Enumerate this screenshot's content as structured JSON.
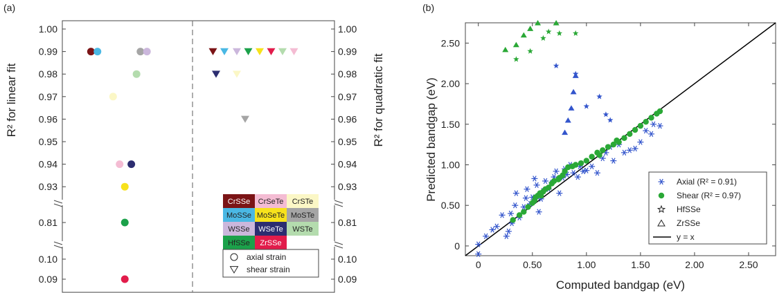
{
  "chart_data": [
    {
      "type": "scatter",
      "panel_label": "(a)",
      "ylabel_left": "R² for linear fit",
      "ylabel_right": "R² for quadratic fit",
      "yticks_upper": [
        "1.00",
        "0.99",
        "0.98",
        "0.97",
        "0.96",
        "0.95",
        "0.94",
        "0.93"
      ],
      "yticks_mid": [
        "0.81"
      ],
      "yticks_low": [
        "0.10",
        "0.09"
      ],
      "axial_points": [
        {
          "material": "CrSSe",
          "r2": 0.99,
          "x": 0.22
        },
        {
          "material": "MoSSe",
          "r2": 0.99,
          "x": 0.27
        },
        {
          "material": "MoSTe",
          "r2": 0.99,
          "x": 0.6
        },
        {
          "material": "WSSe",
          "r2": 0.99,
          "x": 0.65
        },
        {
          "material": "WSTe",
          "r2": 0.98,
          "x": 0.57
        },
        {
          "material": "CrSTe",
          "r2": 0.97,
          "x": 0.39
        },
        {
          "material": "CrSeTe",
          "r2": 0.94,
          "x": 0.44
        },
        {
          "material": "WSeTe",
          "r2": 0.94,
          "x": 0.53
        },
        {
          "material": "MoSeTe",
          "r2": 0.93,
          "x": 0.48
        },
        {
          "material": "HfSSe",
          "r2": 0.81,
          "x": 0.48
        },
        {
          "material": "ZrSSe",
          "r2": 0.09,
          "x": 0.48
        }
      ],
      "shear_points": [
        {
          "material": "CrSSe",
          "r2": 0.99,
          "x": 0.05
        },
        {
          "material": "MoSSe",
          "r2": 0.99,
          "x": 0.16
        },
        {
          "material": "WSSe",
          "r2": 0.99,
          "x": 0.28
        },
        {
          "material": "HfSSe",
          "r2": 0.99,
          "x": 0.39
        },
        {
          "material": "MoSeTe",
          "r2": 0.99,
          "x": 0.5
        },
        {
          "material": "ZrSSe",
          "r2": 0.99,
          "x": 0.61
        },
        {
          "material": "WSTe",
          "r2": 0.99,
          "x": 0.72
        },
        {
          "material": "CrSeTe",
          "r2": 0.99,
          "x": 0.83
        },
        {
          "material": "WSeTe",
          "r2": 0.98,
          "x": 0.08
        },
        {
          "material": "CrSTe",
          "r2": 0.98,
          "x": 0.28
        },
        {
          "material": "MoSTe",
          "r2": 0.96,
          "x": 0.36
        }
      ],
      "materials": [
        {
          "name": "CrSSe",
          "color": "#7b1416",
          "text_color": "#ffffff"
        },
        {
          "name": "CrSeTe",
          "color": "#f4bcd3",
          "text_color": "#222222"
        },
        {
          "name": "CrSTe",
          "color": "#fbf7c6",
          "text_color": "#222222"
        },
        {
          "name": "MoSSe",
          "color": "#4ab8e4",
          "text_color": "#222222"
        },
        {
          "name": "MoSeTe",
          "color": "#f7e21c",
          "text_color": "#222222"
        },
        {
          "name": "MoSTe",
          "color": "#a5a5a5",
          "text_color": "#222222"
        },
        {
          "name": "WSSe",
          "color": "#cbb7dc",
          "text_color": "#222222"
        },
        {
          "name": "WSeTe",
          "color": "#2c2d70",
          "text_color": "#ffffff"
        },
        {
          "name": "WSTe",
          "color": "#b4dcae",
          "text_color": "#222222"
        },
        {
          "name": "HfSSe",
          "color": "#1ba14a",
          "text_color": "#222222"
        },
        {
          "name": "ZrSSe",
          "color": "#e21c4b",
          "text_color": "#ffffff"
        }
      ],
      "marker_legend": [
        {
          "shape": "circle",
          "label": "axial strain"
        },
        {
          "shape": "triangle-down",
          "label": "shear strain"
        }
      ]
    },
    {
      "type": "scatter",
      "panel_label": "(b)",
      "xlabel": "Computed bandgap (eV)",
      "ylabel": "Predicted bandgap (eV)",
      "xlim": [
        -0.12,
        2.75
      ],
      "ylim": [
        -0.12,
        2.75
      ],
      "xticks": [
        "0",
        "0.50",
        "1.00",
        "1.50",
        "2.00",
        "2.50"
      ],
      "yticks": [
        "0",
        "0.50",
        "1.00",
        "1.50",
        "2.00",
        "2.50"
      ],
      "colors": {
        "axial": "#3355cc",
        "shear": "#2aa836",
        "line": "#000000"
      },
      "legend": [
        {
          "key": "axial",
          "label": "Axial (R² = 0.91)"
        },
        {
          "key": "shear",
          "label": "Shear (R² = 0.97)"
        },
        {
          "key": "hfsse",
          "label": "HfSSe"
        },
        {
          "key": "zrsse",
          "label": "ZrSSe"
        },
        {
          "key": "line",
          "label": "y = x"
        }
      ],
      "axial_points": [
        [
          0.0,
          -0.1
        ],
        [
          0.0,
          0.02
        ],
        [
          0.07,
          0.12
        ],
        [
          0.13,
          0.2
        ],
        [
          0.17,
          0.24
        ],
        [
          0.22,
          0.38
        ],
        [
          0.26,
          0.12
        ],
        [
          0.28,
          0.18
        ],
        [
          0.3,
          0.4
        ],
        [
          0.31,
          0.28
        ],
        [
          0.34,
          0.5
        ],
        [
          0.35,
          0.65
        ],
        [
          0.38,
          0.35
        ],
        [
          0.42,
          0.48
        ],
        [
          0.44,
          0.59
        ],
        [
          0.45,
          0.7
        ],
        [
          0.48,
          0.52
        ],
        [
          0.5,
          0.6
        ],
        [
          0.52,
          0.83
        ],
        [
          0.54,
          0.75
        ],
        [
          0.56,
          0.42
        ],
        [
          0.58,
          0.58
        ],
        [
          0.6,
          0.68
        ],
        [
          0.62,
          0.8
        ],
        [
          0.65,
          0.7
        ],
        [
          0.68,
          0.78
        ],
        [
          0.7,
          0.85
        ],
        [
          0.72,
          0.92
        ],
        [
          0.75,
          0.65
        ],
        [
          0.78,
          0.84
        ],
        [
          0.8,
          0.95
        ],
        [
          0.82,
          0.88
        ],
        [
          0.85,
          1.0
        ],
        [
          0.88,
          0.9
        ],
        [
          0.92,
          0.85
        ],
        [
          0.94,
          0.98
        ],
        [
          0.97,
          0.92
        ],
        [
          1.0,
          0.93
        ],
        [
          1.05,
          0.98
        ],
        [
          1.1,
          0.9
        ],
        [
          1.15,
          1.08
        ],
        [
          1.18,
          1.15
        ],
        [
          1.22,
          1.22
        ],
        [
          1.25,
          1.05
        ],
        [
          1.3,
          1.25
        ],
        [
          1.35,
          1.15
        ],
        [
          1.4,
          1.18
        ],
        [
          1.45,
          1.2
        ],
        [
          1.5,
          1.28
        ],
        [
          1.55,
          1.42
        ],
        [
          1.6,
          1.38
        ],
        [
          1.62,
          1.5
        ],
        [
          1.68,
          1.48
        ]
      ],
      "axial_zrsse": [
        [
          0.8,
          1.4
        ],
        [
          0.83,
          1.55
        ],
        [
          0.86,
          1.7
        ],
        [
          0.88,
          1.9
        ],
        [
          0.9,
          2.1
        ]
      ],
      "shear_points": [
        [
          0.32,
          0.32
        ],
        [
          0.38,
          0.38
        ],
        [
          0.42,
          0.42
        ],
        [
          0.46,
          0.48
        ],
        [
          0.5,
          0.53
        ],
        [
          0.52,
          0.56
        ],
        [
          0.53,
          0.6
        ],
        [
          0.55,
          0.62
        ],
        [
          0.57,
          0.65
        ],
        [
          0.6,
          0.67
        ],
        [
          0.62,
          0.7
        ],
        [
          0.65,
          0.72
        ],
        [
          0.68,
          0.77
        ],
        [
          0.7,
          0.8
        ],
        [
          0.75,
          0.84
        ],
        [
          0.78,
          0.87
        ],
        [
          0.8,
          0.92
        ],
        [
          0.83,
          0.97
        ],
        [
          0.87,
          0.98
        ],
        [
          0.9,
          1.0
        ],
        [
          0.95,
          1.02
        ],
        [
          1.0,
          1.05
        ],
        [
          1.05,
          1.1
        ],
        [
          1.1,
          1.15
        ],
        [
          1.15,
          1.18
        ],
        [
          1.2,
          1.22
        ],
        [
          1.25,
          1.25
        ],
        [
          1.3,
          1.28
        ],
        [
          1.35,
          1.33
        ],
        [
          1.4,
          1.38
        ],
        [
          1.45,
          1.43
        ],
        [
          1.5,
          1.48
        ],
        [
          1.55,
          1.53
        ],
        [
          1.6,
          1.58
        ],
        [
          1.65,
          1.63
        ],
        [
          1.68,
          1.66
        ],
        [
          0.58,
          0.62
        ],
        [
          0.74,
          0.82
        ],
        [
          1.12,
          1.12
        ],
        [
          1.28,
          1.3
        ]
      ],
      "shear_zrsse": [
        [
          0.25,
          2.42
        ],
        [
          0.35,
          2.48
        ],
        [
          0.42,
          2.6
        ],
        [
          0.48,
          2.68
        ],
        [
          0.55,
          2.75
        ],
        [
          0.72,
          2.75
        ]
      ],
      "shear_hfsse": [
        [
          0.35,
          2.3
        ],
        [
          0.48,
          2.4
        ],
        [
          0.6,
          2.56
        ],
        [
          0.65,
          2.64
        ],
        [
          0.75,
          2.62
        ],
        [
          0.9,
          2.62
        ]
      ],
      "axial_hfsse": [
        [
          0.72,
          2.22
        ],
        [
          0.9,
          2.12
        ],
        [
          1.12,
          1.84
        ],
        [
          1.18,
          1.62
        ],
        [
          1.22,
          1.55
        ],
        [
          1.0,
          1.72
        ]
      ]
    }
  ]
}
